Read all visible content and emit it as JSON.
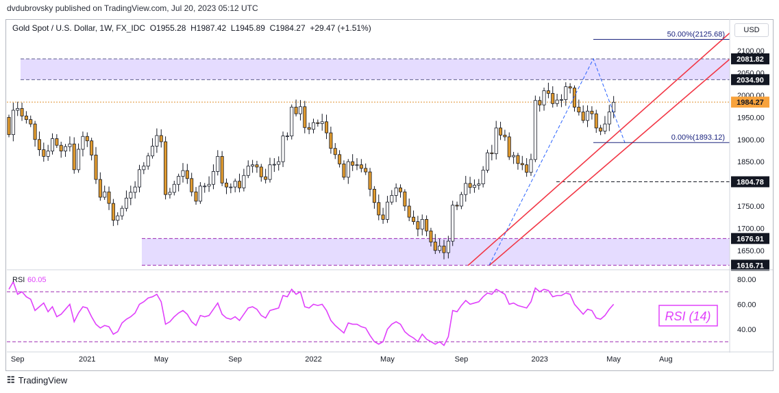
{
  "publisher": "dvdubrovsky published on TradingView.com, Jul 20, 2023 05:12 UTC",
  "symbol": {
    "name": "Gold Spot / U.S. Dollar, 1W, FX_IDC",
    "open": "O1955.28",
    "high": "H1987.42",
    "low": "L1945.89",
    "close": "C1984.27",
    "change": "+29.47 (+1.51%)"
  },
  "currency_button": "USD",
  "footer": {
    "brand": "TradingView"
  },
  "colors": {
    "up": "#ffffff",
    "down": "#e09a2e",
    "wick": "#131722",
    "zone": "#e5dcff",
    "trend": "#f23645",
    "fib": "#2962ff",
    "rsi": "#e040fb",
    "rsi_bands": "#9c27b0"
  },
  "chart_data": {
    "type": "candlestick",
    "title": "Gold Spot / U.S. Dollar, 1W, FX_IDC",
    "price_axis": {
      "ticks": [
        "2100.00",
        "2050.00",
        "2000.00",
        "1950.00",
        "1900.00",
        "1850.00",
        "1800.00",
        "1750.00",
        "1700.00",
        "1650.00"
      ],
      "tick_values": [
        2100,
        2050,
        2000,
        1950,
        1900,
        1850,
        1800,
        1750,
        1700,
        1650
      ],
      "range": [
        1608,
        2145
      ]
    },
    "time_axis": {
      "labels": [
        "Sep",
        "2021",
        "May",
        "Sep",
        "2022",
        "May",
        "Sep",
        "2023",
        "May",
        "Aug"
      ],
      "label_week_index": [
        2,
        18,
        35,
        52,
        70,
        87,
        104,
        122,
        139,
        151
      ]
    },
    "closes": [
      1911,
      1966,
      1970,
      1953,
      1945,
      1935,
      1900,
      1877,
      1862,
      1874,
      1902,
      1887,
      1874,
      1884,
      1890,
      1832,
      1878,
      1907,
      1897,
      1865,
      1810,
      1770,
      1782,
      1756,
      1718,
      1728,
      1745,
      1768,
      1781,
      1793,
      1832,
      1840,
      1863,
      1885,
      1909,
      1895,
      1776,
      1781,
      1799,
      1817,
      1830,
      1812,
      1782,
      1761,
      1795,
      1795,
      1799,
      1828,
      1862,
      1802,
      1793,
      1793,
      1806,
      1791,
      1819,
      1840,
      1843,
      1838,
      1816,
      1810,
      1843,
      1844,
      1850,
      1908,
      1908,
      1973,
      1958,
      1974,
      1927,
      1923,
      1938,
      1936,
      1940,
      1915,
      1880,
      1866,
      1845,
      1815,
      1850,
      1842,
      1843,
      1835,
      1827,
      1788,
      1758,
      1730,
      1720,
      1759,
      1774,
      1791,
      1782,
      1750,
      1725,
      1715,
      1698,
      1720,
      1694,
      1669,
      1650,
      1660,
      1645,
      1671,
      1752,
      1750,
      1776,
      1801,
      1792,
      1797,
      1800,
      1831,
      1870,
      1868,
      1926,
      1910,
      1906,
      1861,
      1864,
      1846,
      1843,
      1826,
      1855,
      1988,
      1978,
      2010,
      2004,
      1981,
      1989,
      1990,
      2019,
      2016,
      1973,
      1962,
      1943,
      1964,
      1958,
      1926,
      1919,
      1935,
      1962,
      1984
    ],
    "key_levels": [
      {
        "label": "2081.82",
        "value": 2081.82
      },
      {
        "label": "2034.90",
        "value": 2034.9
      },
      {
        "label": "1984.27",
        "value": 1984.27
      },
      {
        "label": "1804.78",
        "value": 1804.78
      },
      {
        "label": "1676.91",
        "value": 1676.91
      },
      {
        "label": "1616.71",
        "value": 1616.71
      }
    ],
    "resistance_zone": [
      2034.9,
      2081.82
    ],
    "support_zone": [
      1616.71,
      1676.91
    ],
    "fibonacci": [
      {
        "label": "50.00%(2125.68)",
        "value": 2125.68
      },
      {
        "label": "0.00%(1893.12)",
        "value": 1893.12
      }
    ],
    "rsi": {
      "label": "RSI",
      "value": "60.05",
      "annotation": "RSI (14)",
      "ticks": [
        "80.00",
        "60.00",
        "40.00"
      ],
      "tick_values": [
        80,
        60,
        40
      ],
      "bands": [
        70,
        30
      ],
      "range": [
        24,
        86
      ],
      "values": [
        72,
        78,
        68,
        70,
        66,
        64,
        55,
        58,
        61,
        54,
        58,
        50,
        52,
        56,
        60,
        46,
        53,
        58,
        57,
        50,
        44,
        41,
        43,
        42,
        36,
        38,
        45,
        48,
        50,
        53,
        60,
        62,
        65,
        66,
        68,
        62,
        44,
        46,
        50,
        53,
        55,
        52,
        46,
        43,
        51,
        50,
        51,
        56,
        61,
        52,
        49,
        48,
        50,
        47,
        52,
        57,
        58,
        56,
        51,
        49,
        55,
        56,
        57,
        67,
        66,
        72,
        68,
        70,
        58,
        57,
        60,
        59,
        60,
        55,
        47,
        43,
        40,
        37,
        45,
        44,
        44,
        42,
        41,
        35,
        30,
        28,
        30,
        40,
        44,
        46,
        44,
        38,
        35,
        33,
        30,
        36,
        32,
        30,
        28,
        30,
        27,
        34,
        55,
        54,
        59,
        63,
        60,
        61,
        62,
        66,
        69,
        68,
        72,
        70,
        68,
        60,
        61,
        59,
        58,
        57,
        62,
        73,
        70,
        72,
        71,
        66,
        67,
        67,
        69,
        68,
        60,
        56,
        52,
        56,
        55,
        49,
        48,
        51,
        56,
        60
      ]
    }
  }
}
